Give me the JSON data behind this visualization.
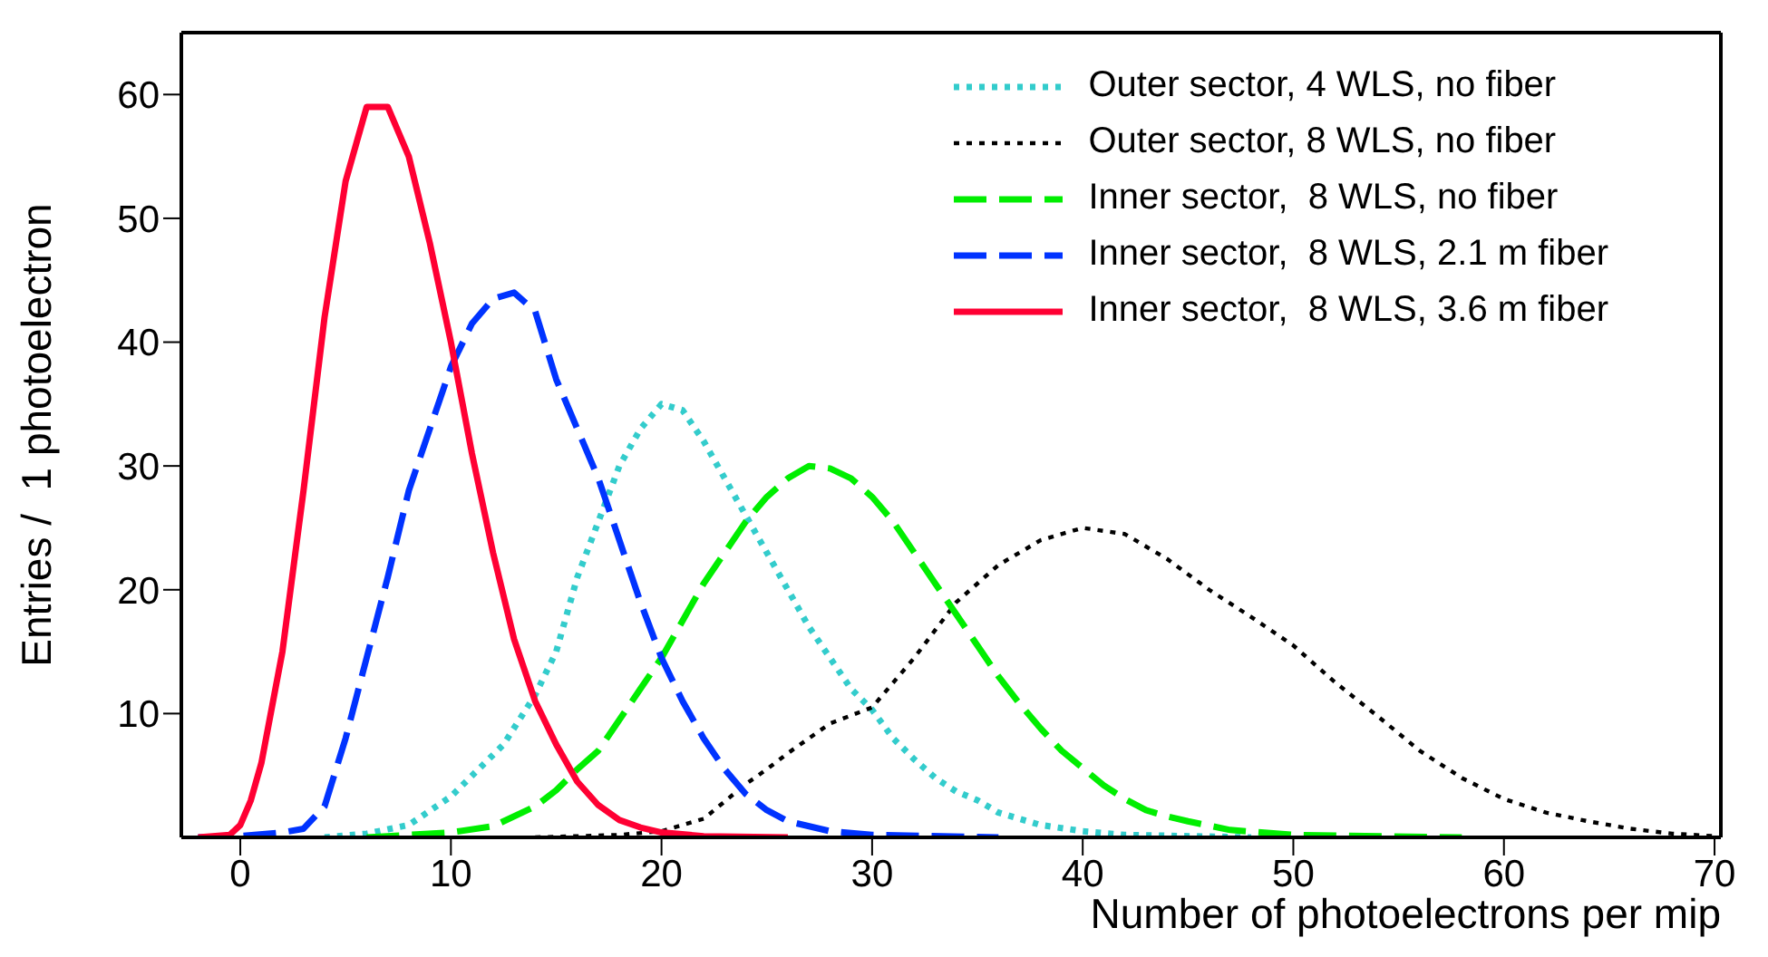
{
  "chart_data": {
    "type": "line",
    "xlabel": "Number of photoelectrons per mip",
    "ylabel": "Entries /  1 photoelectron",
    "xlim": [
      -2.8,
      70.3
    ],
    "xticks": [
      0,
      10,
      20,
      30,
      40,
      50,
      60,
      70
    ],
    "ylim": [
      0,
      65
    ],
    "yticks": [
      10,
      20,
      30,
      40,
      50,
      60
    ],
    "legend": "top right",
    "marker": "none",
    "series": [
      {
        "name": "Outer sector, 4 WLS, no fiber",
        "color": "#33cccc",
        "line_style": "dotted",
        "x": [
          4,
          6,
          8,
          10,
          12.5,
          14,
          15,
          16,
          17,
          18,
          19,
          20,
          21,
          22,
          23,
          24,
          25,
          26,
          27,
          28,
          29,
          30,
          31,
          32,
          33,
          34,
          35,
          36,
          38,
          40,
          42,
          48
        ],
        "values": [
          0,
          0.3,
          1,
          3.3,
          7.5,
          11.5,
          15,
          21,
          25.5,
          30,
          33,
          35,
          34.5,
          32,
          29,
          26,
          23,
          20,
          17,
          14.5,
          12,
          10.3,
          8,
          6.3,
          4.8,
          3.7,
          3,
          2,
          1,
          0.5,
          0.2,
          0
        ]
      },
      {
        "name": "Outer sector, 8 WLS, no fiber",
        "color": "#000000",
        "line_style": "dotted",
        "x": [
          14,
          18,
          20,
          22,
          24,
          25,
          26,
          27,
          28,
          30,
          32,
          34,
          36,
          38,
          40,
          42,
          44,
          46,
          48,
          50,
          52,
          54,
          56,
          58,
          60,
          62,
          64,
          66,
          68,
          70
        ],
        "values": [
          0,
          0.2,
          0.5,
          1.5,
          4.3,
          5.5,
          6.8,
          8,
          9.2,
          10.5,
          14.5,
          19,
          22,
          24,
          25,
          24.5,
          22.5,
          20,
          17.8,
          15.5,
          12.5,
          9.8,
          7,
          4.8,
          3.1,
          2,
          1.3,
          0.7,
          0.3,
          0.1
        ]
      },
      {
        "name": "Inner sector,  8 WLS, no fiber",
        "color": "#00ee00",
        "line_style": "dashed",
        "x": [
          6,
          10,
          12,
          14,
          15,
          16,
          17,
          18,
          19,
          20,
          21,
          22,
          23,
          24,
          25,
          26,
          27,
          28,
          29,
          30,
          31,
          32,
          33,
          34,
          35,
          36,
          37,
          38,
          39,
          40,
          41,
          42,
          43,
          44,
          45,
          47,
          50,
          58
        ],
        "values": [
          0,
          0.4,
          0.9,
          2.5,
          3.8,
          5.5,
          7,
          9.5,
          12,
          14.5,
          17.5,
          20.5,
          23,
          25.5,
          27.5,
          29,
          30,
          29.8,
          29,
          27.5,
          25.5,
          23,
          20.5,
          18,
          15.5,
          13,
          10.8,
          8.8,
          7,
          5.6,
          4.2,
          3.1,
          2.2,
          1.7,
          1.3,
          0.6,
          0.2,
          0
        ]
      },
      {
        "name": "Inner sector,  8 WLS, 2.1 m fiber",
        "color": "#0033ff",
        "line_style": "dashed",
        "x": [
          -2,
          0,
          2,
          3,
          4,
          5,
          6,
          7,
          8,
          9,
          10,
          11,
          12,
          13,
          14,
          15,
          16,
          17,
          18,
          19,
          20,
          21,
          22,
          23,
          24,
          25,
          26,
          28,
          30,
          36
        ],
        "values": [
          0,
          0.1,
          0.4,
          0.7,
          2.5,
          8,
          14.5,
          21,
          28,
          33,
          38,
          41.5,
          43.5,
          44,
          42.5,
          37,
          33,
          29,
          24,
          19,
          14.5,
          11,
          8,
          5.5,
          3.5,
          2.2,
          1.3,
          0.5,
          0.2,
          0
        ]
      },
      {
        "name": "Inner sector,  8 WLS, 3.6 m fiber",
        "color": "#ff0033",
        "line_style": "solid",
        "x": [
          -2,
          -0.5,
          0,
          0.5,
          1,
          2,
          3,
          4,
          5,
          6,
          7,
          8,
          9,
          10,
          11,
          12,
          13,
          14,
          15,
          16,
          17,
          18,
          19,
          20,
          22,
          26
        ],
        "values": [
          0,
          0.2,
          1,
          3,
          6,
          15,
          28,
          42,
          53,
          59,
          59,
          55,
          48,
          40,
          31,
          23,
          16,
          11,
          7.5,
          4.5,
          2.6,
          1.4,
          0.8,
          0.4,
          0.1,
          0
        ]
      }
    ]
  }
}
